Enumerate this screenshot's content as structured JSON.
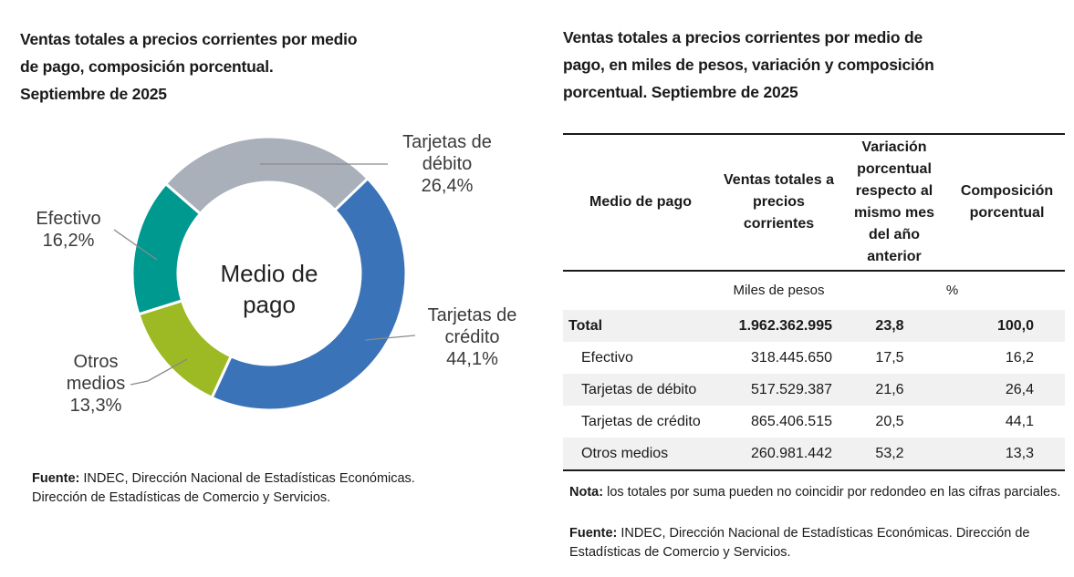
{
  "left": {
    "title_lines": [
      "Ventas totales a precios corrientes por medio",
      "de pago, composición porcentual.",
      "Septiembre de 2025"
    ],
    "source_label": "Fuente:",
    "source_text": " INDEC, Dirección Nacional de Estadísticas Económicas.",
    "source_line2": "Dirección de Estadísticas de Comercio y Servicios."
  },
  "chart_data": {
    "type": "pie",
    "variant": "donut",
    "center_label_lines": [
      "Medio de",
      "pago"
    ],
    "unit": "%",
    "slices": [
      {
        "label_lines": [
          "Tarjetas de",
          "crédito"
        ],
        "value": 44.1,
        "value_label": "44,1%",
        "color": "#3a73b8"
      },
      {
        "label_lines": [
          "Otros",
          "medios"
        ],
        "value": 13.3,
        "value_label": "13,3%",
        "color": "#9dba25"
      },
      {
        "label_lines": [
          "Efectivo"
        ],
        "value": 16.2,
        "value_label": "16,2%",
        "color": "#00998f"
      },
      {
        "label_lines": [
          "Tarjetas de",
          "débito"
        ],
        "value": 26.4,
        "value_label": "26,4%",
        "color": "#a9b0ba"
      }
    ]
  },
  "right": {
    "title_lines": [
      "Ventas totales a precios corrientes por medio de",
      "pago, en miles de pesos, variación y composición",
      "porcentual. Septiembre de 2025"
    ],
    "table": {
      "headers": [
        "Medio de pago",
        "Ventas totales a precios corrientes",
        "Variación porcentual respecto al mismo mes del año anterior",
        "Composición porcentual"
      ],
      "units": [
        "",
        "Miles de pesos",
        "%"
      ],
      "rows": [
        {
          "name": "Total",
          "ventas": "1.962.362.995",
          "variacion": "23,8",
          "composicion": "100,0"
        },
        {
          "name": "Efectivo",
          "ventas": "318.445.650",
          "variacion": "17,5",
          "composicion": "16,2"
        },
        {
          "name": "Tarjetas de débito",
          "ventas": "517.529.387",
          "variacion": "21,6",
          "composicion": "26,4"
        },
        {
          "name": "Tarjetas de crédito",
          "ventas": "865.406.515",
          "variacion": "20,5",
          "composicion": "44,1"
        },
        {
          "name": "Otros medios",
          "ventas": "260.981.442",
          "variacion": "53,2",
          "composicion": "13,3"
        }
      ]
    },
    "note_label": "Nota:",
    "note_text": " los totales por suma pueden no coincidir por redondeo en las cifras parciales.",
    "source_label": "Fuente:",
    "source_text": " INDEC, Dirección Nacional de Estadísticas Económicas. Dirección de Estadísticas de Comercio y Servicios."
  }
}
